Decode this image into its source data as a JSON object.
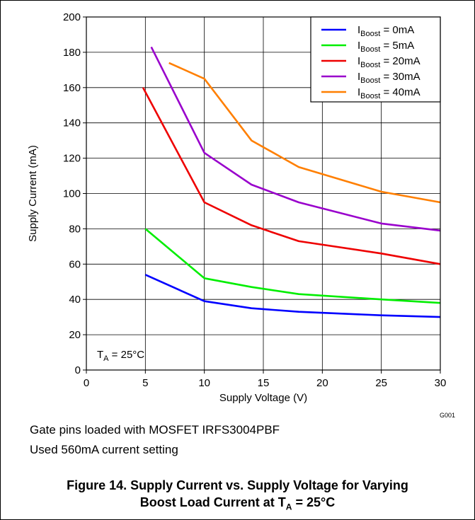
{
  "chart_data": {
    "type": "line",
    "xlabel": "Supply Voltage (V)",
    "ylabel": "Supply Current (mA)",
    "xlim": [
      0,
      30
    ],
    "ylim": [
      0,
      200
    ],
    "x_ticks": [
      "0",
      "5",
      "10",
      "15",
      "20",
      "25",
      "30"
    ],
    "y_ticks": [
      "0",
      "20",
      "40",
      "60",
      "80",
      "100",
      "120",
      "140",
      "160",
      "180",
      "200"
    ],
    "grid": true,
    "legend_position": "top-right",
    "annotation": {
      "main": "T",
      "sub": "A",
      "rest": " = 25°C"
    },
    "code": "G001",
    "series": [
      {
        "name_main": "I",
        "name_sub": "Boost",
        "name_rest": " = 0mA",
        "color": "#0000ff",
        "x": [
          5,
          10,
          14,
          18,
          25,
          30
        ],
        "y": [
          54,
          39,
          35,
          33,
          31,
          30
        ]
      },
      {
        "name_main": "I",
        "name_sub": "Boost",
        "name_rest": " = 5mA",
        "color": "#00ee00",
        "x": [
          5,
          10,
          14,
          18,
          25,
          30
        ],
        "y": [
          80,
          52,
          47,
          43,
          40,
          38
        ]
      },
      {
        "name_main": "I",
        "name_sub": "Boost",
        "name_rest": " = 20mA",
        "color": "#ee0000",
        "x": [
          4.8,
          10,
          14,
          18,
          25,
          30
        ],
        "y": [
          160,
          95,
          82,
          73,
          66,
          60
        ]
      },
      {
        "name_main": "I",
        "name_sub": "Boost",
        "name_rest": " = 30mA",
        "color": "#9900cc",
        "x": [
          5.5,
          10,
          14,
          18,
          25,
          30
        ],
        "y": [
          183,
          123,
          105,
          95,
          83,
          79
        ]
      },
      {
        "name_main": "I",
        "name_sub": "Boost",
        "name_rest": " = 40mA",
        "color": "#ff7f00",
        "x": [
          7,
          10,
          14,
          18,
          25,
          30
        ],
        "y": [
          174,
          165,
          130,
          115,
          101,
          95
        ]
      }
    ]
  },
  "notes": {
    "line1": "Gate pins loaded with MOSFET IRFS3004PBF",
    "line2": "Used 560mA current setting"
  },
  "caption": {
    "line1": "Figure 14. Supply Current vs. Supply Voltage for Varying",
    "line2_main": "Boost Load Current at T",
    "line2_sub": "A",
    "line2_rest": " = 25°C"
  }
}
